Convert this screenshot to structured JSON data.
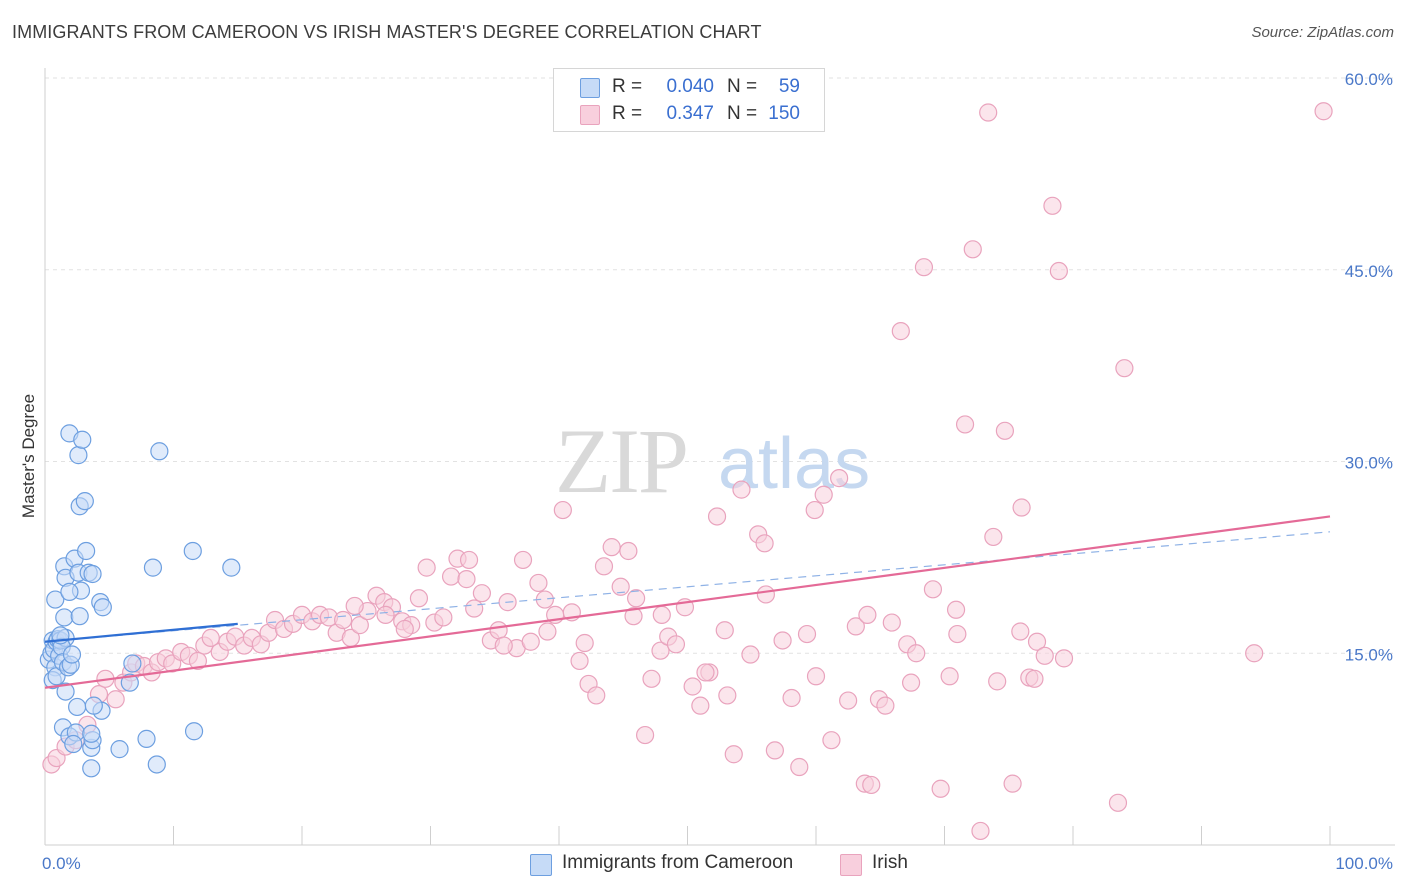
{
  "header": {
    "title": "IMMIGRANTS FROM CAMEROON VS IRISH MASTER'S DEGREE CORRELATION CHART",
    "source": "Source: ZipAtlas.com"
  },
  "watermark": {
    "zip": "ZIP",
    "atlas": "atlas"
  },
  "legend": {
    "rows": [
      {
        "r_label": "R =",
        "r_value": "0.040",
        "n_label": "N =",
        "n_value": "59"
      },
      {
        "r_label": "R =",
        "r_value": "0.347",
        "n_label": "N =",
        "n_value": "150"
      }
    ]
  },
  "bottom_legend": {
    "series1": "Immigrants from Cameroon",
    "series2": "Irish"
  },
  "colors": {
    "blue_fill": "#c6dbf7",
    "blue_stroke": "#6d9fe0",
    "blue_line": "#2f6fd4",
    "pink_fill": "#f8cfdd",
    "pink_stroke": "#e9a3bd",
    "pink_line": "#e46a97",
    "axis_text": "#4a78c8"
  },
  "chart_data": {
    "type": "scatter",
    "title": "IMMIGRANTS FROM CAMEROON VS IRISH MASTER'S DEGREE CORRELATION CHART",
    "xlabel": "",
    "ylabel": "Master's Degree",
    "xlim": [
      0,
      100
    ],
    "ylim": [
      0,
      60
    ],
    "x_tick_labels": [
      "0.0%",
      "100.0%"
    ],
    "y_ticks": [
      15,
      30,
      45,
      60
    ],
    "y_tick_labels": [
      "15.0%",
      "30.0%",
      "45.0%",
      "60.0%"
    ],
    "series": [
      {
        "name": "Immigrants from Cameroon",
        "r": 0.04,
        "n": 59,
        "trend": {
          "x": [
            0,
            15
          ],
          "y": [
            15.9,
            17.3
          ]
        },
        "dashed_trend": {
          "x": [
            0,
            100
          ],
          "y": [
            15.9,
            24.5
          ]
        },
        "points": [
          [
            0.3,
            14.5
          ],
          [
            0.5,
            15.0
          ],
          [
            0.6,
            16.0
          ],
          [
            0.7,
            15.3
          ],
          [
            0.8,
            13.9
          ],
          [
            0.9,
            15.9
          ],
          [
            1.0,
            16.1
          ],
          [
            1.1,
            14.8
          ],
          [
            1.2,
            16.0
          ],
          [
            0.6,
            12.9
          ],
          [
            0.9,
            13.2
          ],
          [
            0.8,
            19.2
          ],
          [
            1.5,
            17.8
          ],
          [
            1.6,
            16.2
          ],
          [
            1.3,
            15.5
          ],
          [
            1.4,
            14.3
          ],
          [
            1.8,
            13.9
          ],
          [
            2.0,
            14.1
          ],
          [
            2.1,
            14.9
          ],
          [
            1.6,
            12.0
          ],
          [
            1.5,
            21.8
          ],
          [
            1.6,
            20.9
          ],
          [
            2.3,
            22.4
          ],
          [
            2.6,
            21.3
          ],
          [
            2.8,
            19.9
          ],
          [
            1.9,
            19.8
          ],
          [
            2.7,
            17.9
          ],
          [
            3.4,
            21.3
          ],
          [
            3.7,
            21.2
          ],
          [
            4.3,
            19.0
          ],
          [
            4.5,
            18.6
          ],
          [
            3.2,
            23.0
          ],
          [
            2.7,
            26.5
          ],
          [
            3.1,
            26.9
          ],
          [
            2.6,
            30.5
          ],
          [
            1.9,
            32.2
          ],
          [
            2.9,
            31.7
          ],
          [
            2.5,
            10.8
          ],
          [
            4.4,
            10.5
          ],
          [
            3.8,
            10.9
          ],
          [
            1.4,
            9.2
          ],
          [
            1.9,
            8.5
          ],
          [
            2.4,
            8.8
          ],
          [
            2.2,
            7.9
          ],
          [
            3.6,
            7.6
          ],
          [
            3.7,
            8.2
          ],
          [
            3.6,
            8.7
          ],
          [
            3.6,
            6.0
          ],
          [
            5.8,
            7.5
          ],
          [
            7.9,
            8.3
          ],
          [
            8.7,
            6.3
          ],
          [
            11.6,
            8.9
          ],
          [
            6.8,
            14.2
          ],
          [
            6.6,
            12.7
          ],
          [
            8.4,
            21.7
          ],
          [
            11.5,
            23.0
          ],
          [
            14.5,
            21.7
          ],
          [
            8.9,
            30.8
          ],
          [
            1.2,
            16.4
          ]
        ]
      },
      {
        "name": "Irish",
        "r": 0.347,
        "n": 150,
        "trend": {
          "x": [
            0,
            100
          ],
          "y": [
            12.3,
            25.7
          ]
        },
        "points": [
          [
            0.5,
            6.3
          ],
          [
            0.9,
            6.8
          ],
          [
            1.6,
            7.7
          ],
          [
            2.4,
            8.2
          ],
          [
            3.3,
            9.4
          ],
          [
            4.2,
            11.8
          ],
          [
            4.7,
            13.0
          ],
          [
            5.5,
            11.4
          ],
          [
            6.1,
            12.7
          ],
          [
            6.7,
            13.5
          ],
          [
            7.1,
            14.2
          ],
          [
            7.7,
            14.0
          ],
          [
            8.3,
            13.5
          ],
          [
            8.8,
            14.3
          ],
          [
            9.4,
            14.6
          ],
          [
            9.9,
            14.2
          ],
          [
            10.6,
            15.1
          ],
          [
            11.2,
            14.8
          ],
          [
            11.9,
            14.4
          ],
          [
            12.4,
            15.6
          ],
          [
            12.9,
            16.2
          ],
          [
            13.6,
            15.1
          ],
          [
            14.2,
            15.9
          ],
          [
            14.8,
            16.3
          ],
          [
            15.5,
            15.6
          ],
          [
            16.1,
            16.2
          ],
          [
            16.8,
            15.7
          ],
          [
            17.4,
            16.6
          ],
          [
            17.9,
            17.6
          ],
          [
            18.6,
            16.9
          ],
          [
            19.3,
            17.3
          ],
          [
            20.0,
            18.0
          ],
          [
            20.8,
            17.5
          ],
          [
            21.4,
            18.0
          ],
          [
            22.1,
            17.8
          ],
          [
            22.7,
            16.6
          ],
          [
            23.2,
            17.6
          ],
          [
            23.8,
            16.2
          ],
          [
            24.5,
            17.2
          ],
          [
            25.1,
            18.3
          ],
          [
            25.8,
            19.5
          ],
          [
            26.4,
            19.0
          ],
          [
            27.0,
            18.6
          ],
          [
            27.8,
            17.5
          ],
          [
            28.5,
            17.2
          ],
          [
            29.1,
            19.3
          ],
          [
            29.7,
            21.7
          ],
          [
            30.3,
            17.4
          ],
          [
            31.0,
            17.8
          ],
          [
            31.6,
            21.0
          ],
          [
            32.1,
            22.4
          ],
          [
            32.8,
            20.8
          ],
          [
            33.4,
            18.5
          ],
          [
            34.0,
            19.7
          ],
          [
            34.7,
            16.0
          ],
          [
            35.3,
            16.8
          ],
          [
            36.0,
            19.0
          ],
          [
            36.7,
            15.4
          ],
          [
            37.2,
            22.3
          ],
          [
            37.8,
            15.9
          ],
          [
            38.4,
            20.5
          ],
          [
            39.1,
            16.7
          ],
          [
            39.7,
            18.0
          ],
          [
            40.3,
            26.2
          ],
          [
            41.0,
            18.2
          ],
          [
            41.6,
            14.4
          ],
          [
            42.3,
            12.6
          ],
          [
            42.9,
            11.7
          ],
          [
            43.5,
            21.8
          ],
          [
            44.1,
            23.3
          ],
          [
            44.8,
            20.2
          ],
          [
            45.4,
            23.0
          ],
          [
            46.0,
            19.3
          ],
          [
            46.7,
            8.6
          ],
          [
            47.2,
            13.0
          ],
          [
            47.9,
            15.2
          ],
          [
            48.5,
            16.3
          ],
          [
            49.1,
            15.7
          ],
          [
            49.8,
            18.6
          ],
          [
            50.4,
            12.4
          ],
          [
            51.0,
            10.9
          ],
          [
            51.7,
            13.5
          ],
          [
            52.3,
            25.7
          ],
          [
            52.9,
            16.8
          ],
          [
            53.6,
            7.1
          ],
          [
            54.2,
            27.8
          ],
          [
            54.9,
            14.9
          ],
          [
            55.5,
            24.3
          ],
          [
            56.1,
            19.6
          ],
          [
            56.8,
            7.4
          ],
          [
            57.4,
            16.0
          ],
          [
            58.1,
            11.5
          ],
          [
            58.7,
            6.1
          ],
          [
            59.3,
            16.5
          ],
          [
            59.9,
            26.2
          ],
          [
            60.6,
            27.4
          ],
          [
            61.2,
            8.2
          ],
          [
            61.8,
            28.7
          ],
          [
            62.5,
            11.3
          ],
          [
            63.1,
            17.1
          ],
          [
            63.8,
            4.8
          ],
          [
            64.3,
            4.7
          ],
          [
            64.9,
            11.4
          ],
          [
            65.4,
            10.9
          ],
          [
            65.9,
            17.4
          ],
          [
            66.6,
            40.2
          ],
          [
            67.1,
            15.7
          ],
          [
            67.8,
            15.0
          ],
          [
            68.4,
            45.2
          ],
          [
            69.1,
            20.0
          ],
          [
            69.7,
            4.4
          ],
          [
            70.4,
            13.2
          ],
          [
            71.0,
            16.5
          ],
          [
            71.6,
            32.9
          ],
          [
            72.2,
            46.6
          ],
          [
            72.8,
            1.1
          ],
          [
            73.4,
            57.3
          ],
          [
            74.1,
            12.8
          ],
          [
            74.7,
            32.4
          ],
          [
            75.3,
            4.8
          ],
          [
            76.0,
            26.4
          ],
          [
            76.6,
            13.1
          ],
          [
            77.2,
            15.9
          ],
          [
            77.8,
            14.8
          ],
          [
            78.4,
            50.0
          ],
          [
            78.9,
            44.9
          ],
          [
            83.5,
            3.3
          ],
          [
            84.0,
            37.3
          ],
          [
            94.1,
            15.0
          ],
          [
            99.5,
            57.4
          ],
          [
            24.1,
            18.7
          ],
          [
            26.5,
            18.0
          ],
          [
            28.0,
            16.9
          ],
          [
            33.0,
            22.3
          ],
          [
            35.7,
            15.6
          ],
          [
            38.9,
            19.2
          ],
          [
            42.0,
            15.8
          ],
          [
            45.8,
            17.9
          ],
          [
            48.0,
            18.0
          ],
          [
            51.4,
            13.5
          ],
          [
            53.1,
            11.7
          ],
          [
            56.0,
            23.6
          ],
          [
            60.0,
            13.2
          ],
          [
            64.0,
            18.0
          ],
          [
            67.4,
            12.7
          ],
          [
            70.9,
            18.4
          ],
          [
            73.8,
            24.1
          ],
          [
            75.9,
            16.7
          ],
          [
            77.0,
            13.0
          ],
          [
            79.3,
            14.6
          ]
        ]
      }
    ]
  }
}
